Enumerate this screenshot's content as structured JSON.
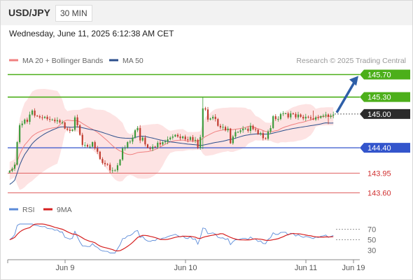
{
  "header": {
    "pair": "USD/JPY",
    "timeframe": "30 MIN"
  },
  "date_line": "Wednesday, June 11, 2025 6:12:38 AM CET",
  "source": "Research © 2025 Trading Central",
  "colors": {
    "up": "#3a9a3a",
    "down": "#c0392b",
    "ma20": "#f08080",
    "band_fill": "#fde3e3",
    "ma50": "#2c4f8c",
    "resistance": "#4caf1a",
    "support": "#3355cc",
    "lower": "#e06060",
    "arrow": "#2e5fa8",
    "rsi": "#5b8bd8",
    "rsi_ma": "#d62020"
  },
  "chart_data": [
    {
      "type": "candlestick",
      "legend": [
        {
          "name": "MA 20 + Bollinger Bands",
          "color": "#f08080"
        },
        {
          "name": "MA 50",
          "color": "#2c4f8c"
        }
      ],
      "ylim": [
        143.42,
        145.88
      ],
      "x_ticks": [
        "Jun 9",
        "Jun 10",
        "Jun 11",
        "Jun 19"
      ],
      "last_price": "145.00",
      "levels": [
        {
          "value": 145.7,
          "label": "145.70",
          "style": "resistance-filled"
        },
        {
          "value": 145.3,
          "label": "145.30",
          "style": "resistance-filled"
        },
        {
          "value": 145.0,
          "label": "145.00",
          "style": "current"
        },
        {
          "value": 144.4,
          "label": "144.40",
          "style": "support-filled"
        },
        {
          "value": 143.95,
          "label": "143.95",
          "style": "lower"
        },
        {
          "value": 143.6,
          "label": "143.60",
          "style": "lower"
        }
      ],
      "arrow": {
        "from": 145.0,
        "to": 145.7
      },
      "closes": [
        143.99,
        144.03,
        144.1,
        144.5,
        144.8,
        144.83,
        144.9,
        144.86,
        144.99,
        145.06,
        144.97,
        144.96,
        144.94,
        144.93,
        144.95,
        144.91,
        144.9,
        144.9,
        144.87,
        144.89,
        144.85,
        144.85,
        144.74,
        144.72,
        144.7,
        144.72,
        144.94,
        144.8,
        144.63,
        144.45,
        144.45,
        144.42,
        144.42,
        144.5,
        144.39,
        144.33,
        144.2,
        144.13,
        144.11,
        144.1,
        144.0,
        144.0,
        144.0,
        144.09,
        144.19,
        144.39,
        144.4,
        144.5,
        144.51,
        144.58,
        144.71,
        144.75,
        144.53,
        144.58,
        144.46,
        144.4,
        144.38,
        144.42,
        144.41,
        144.49,
        144.46,
        144.5,
        144.51,
        144.55,
        144.58,
        144.6,
        144.63,
        144.6,
        144.57,
        144.6,
        144.55,
        144.54,
        144.59,
        144.53,
        144.54,
        144.4,
        144.59,
        145.1,
        145.08,
        144.9,
        144.92,
        144.95,
        144.91,
        144.79,
        144.76,
        144.77,
        144.71,
        144.74,
        144.48,
        144.6,
        144.68,
        144.68,
        144.71,
        144.74,
        144.74,
        144.7,
        144.79,
        144.73,
        144.72,
        144.64,
        144.66,
        144.57,
        144.56,
        144.69,
        144.75,
        144.96,
        144.91,
        144.91,
        145.0,
        145.01,
        145.01,
        144.94,
        145.01,
        145.0,
        144.94,
        144.99,
        144.95,
        144.92,
        144.95,
        144.94,
        144.92,
        144.9,
        144.94,
        144.93,
        144.96,
        144.97,
        144.99,
        144.95,
        144.97,
        144.99
      ],
      "series": [
        {
          "name": "RSI",
          "color": "#5b8bd8"
        },
        {
          "name": "9MA",
          "color": "#d62020"
        }
      ],
      "rsi_ticks": [
        70,
        50,
        30
      ],
      "rsi_ylim": [
        24,
        80
      ]
    }
  ]
}
